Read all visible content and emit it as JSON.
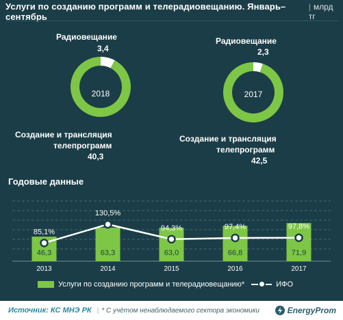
{
  "header": {
    "title": "Услуги по созданию программ и телерадиовещанию. Январь–сентябрь",
    "unit": "млрд тг"
  },
  "donuts": [
    {
      "year": "2018",
      "radio_label": "Радиовещание",
      "radio_value": "3,4",
      "tv_label_line1": "Создание и трансляция",
      "tv_label_line2": "телепрограмм",
      "tv_value": "40,3"
    },
    {
      "year": "2017",
      "radio_label": "Радиовещание",
      "radio_value": "2,3",
      "tv_label_line1": "Создание и трансляция",
      "tv_label_line2": "телепрограмм",
      "tv_value": "42,5"
    }
  ],
  "annual": {
    "title": "Годовые данные"
  },
  "chart_data": [
    {
      "type": "pie",
      "center_label": "2018",
      "categories": [
        "Радиовещание",
        "Создание и трансляция телепрограмм"
      ],
      "values": [
        3.4,
        40.3
      ],
      "colors": [
        "#ffffff",
        "#7ec646"
      ]
    },
    {
      "type": "pie",
      "center_label": "2017",
      "categories": [
        "Радиовещание",
        "Создание и трансляция телепрограмм"
      ],
      "values": [
        2.3,
        42.5
      ],
      "colors": [
        "#ffffff",
        "#7ec646"
      ]
    },
    {
      "type": "bar",
      "categories": [
        "2013",
        "2014",
        "2015",
        "2016",
        "2017"
      ],
      "series": [
        {
          "name": "Услуги по созданию программ и телерадиовещанию*",
          "type": "bar",
          "values": [
            46.3,
            63.3,
            63.0,
            66.8,
            71.9
          ],
          "labels": [
            "46,3",
            "63,3",
            "63,0",
            "66,8",
            "71,9"
          ],
          "color": "#7ec646"
        },
        {
          "name": "ИФО",
          "type": "line",
          "values": [
            85.1,
            130.5,
            94.3,
            97.4,
            97.8
          ],
          "labels": [
            "85,1%",
            "130,5%",
            "94,3%",
            "97,4%",
            "97,8%"
          ],
          "color": "#ffffff"
        }
      ],
      "grid": true,
      "legend": "bottom"
    }
  ],
  "legend": {
    "bar_label": "Услуги по созданию программ и телерадиовещанию*",
    "line_label": "ИФО"
  },
  "footer": {
    "source": "Источник: КС МНЭ РК",
    "note": "* С учётом ненаблюдаемого сектора экономики",
    "logo": "EnergyProm"
  }
}
